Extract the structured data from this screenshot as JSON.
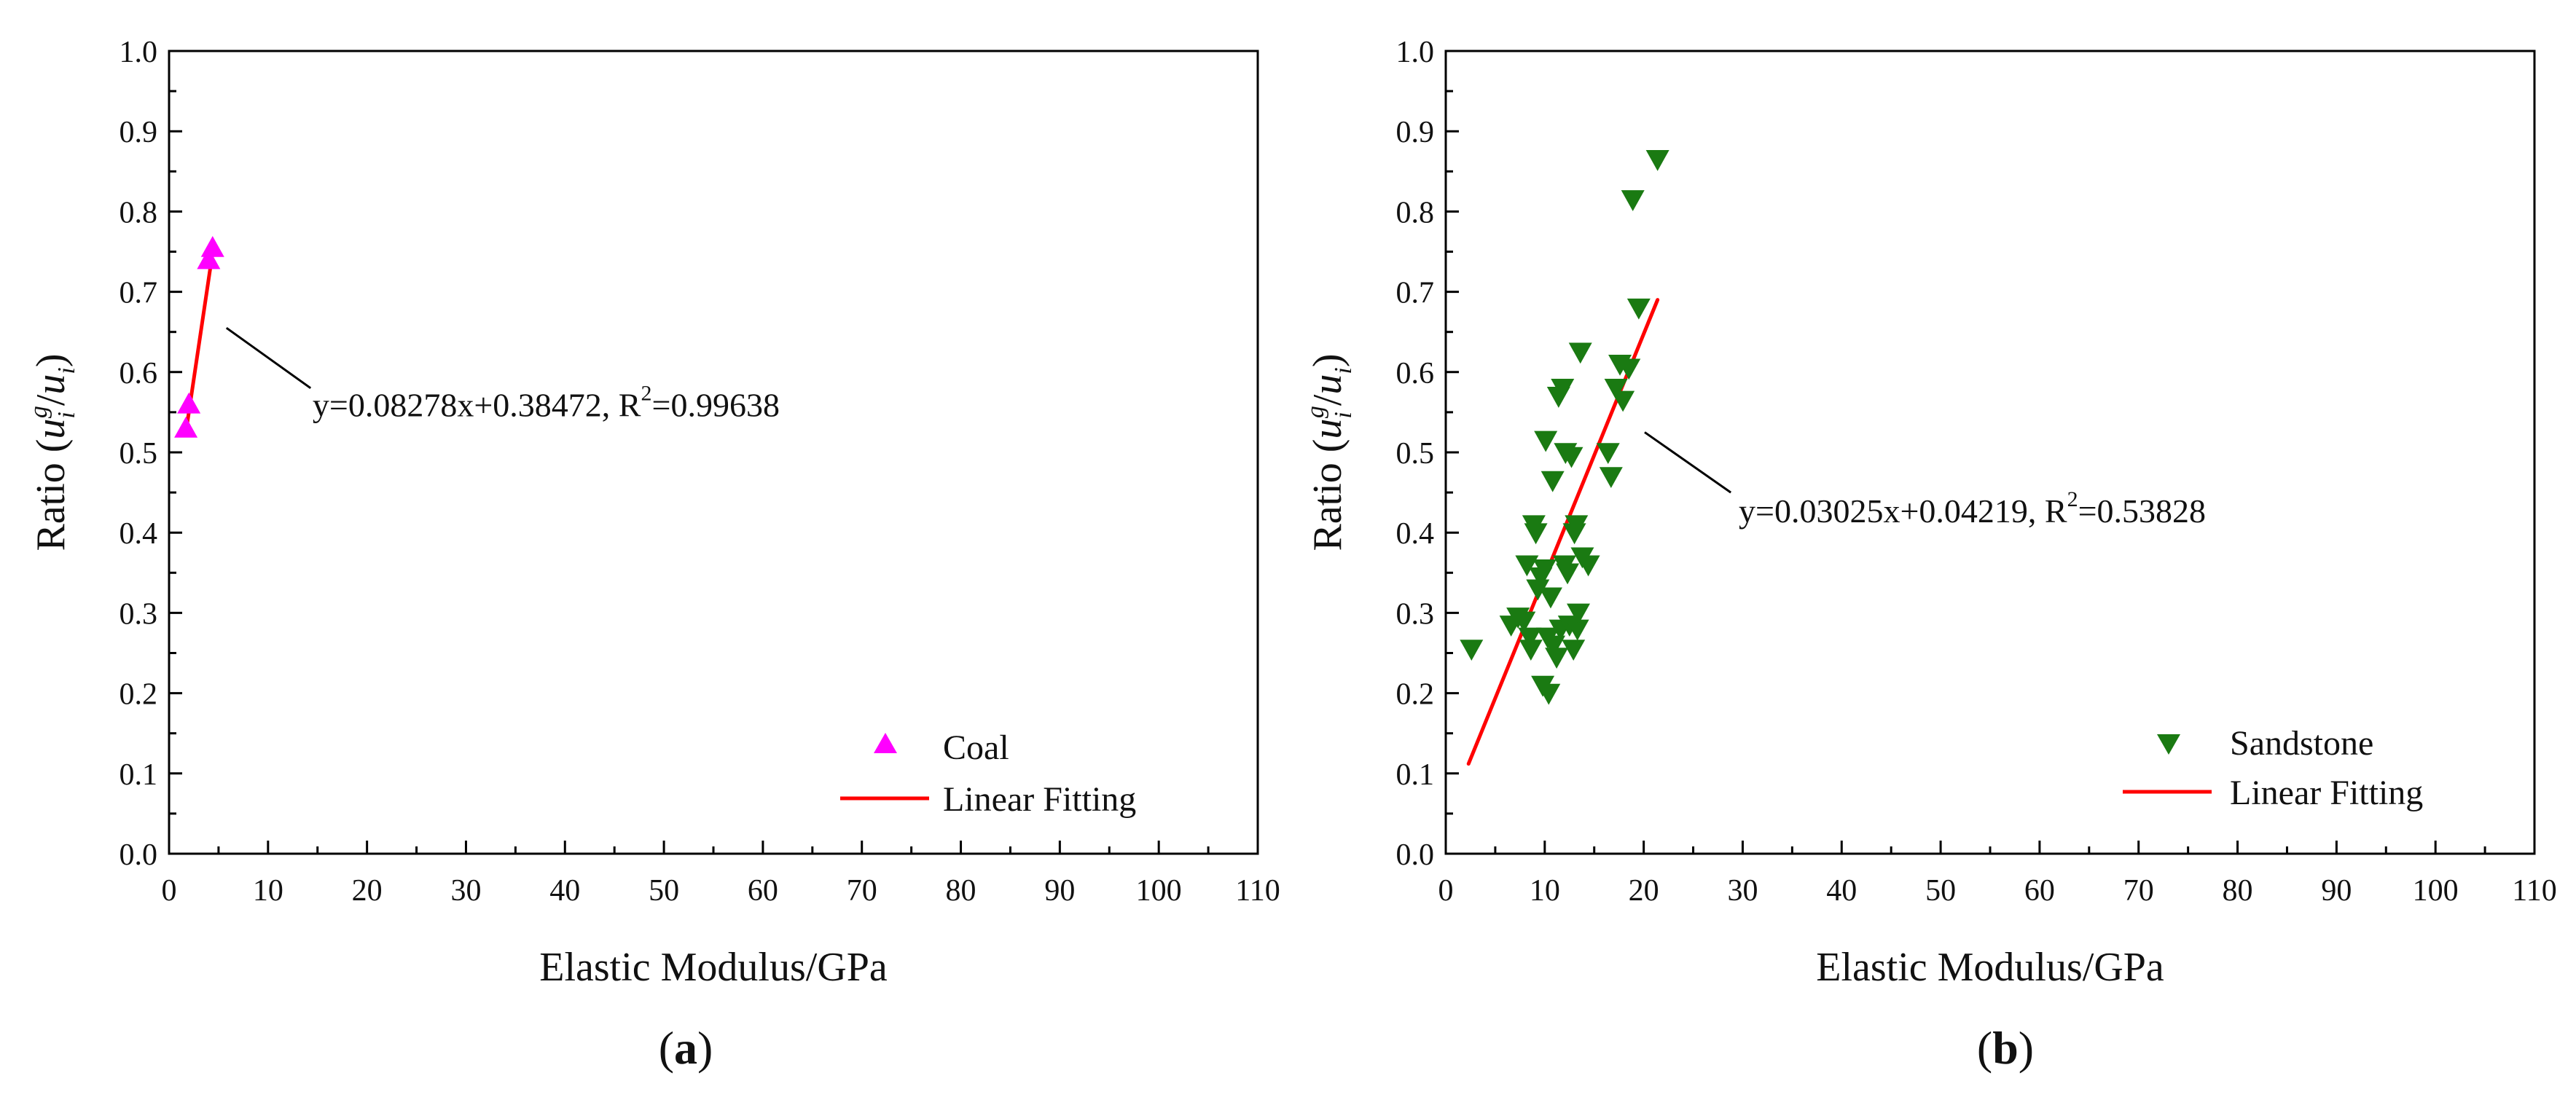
{
  "chart_data": [
    {
      "panel": "a",
      "panel_label_letter": "a",
      "type": "scatter",
      "xlabel": "Elastic Modulus/GPa",
      "ylabel_prefix": "Ratio (",
      "ylabel_u": "u",
      "ylabel_sup": "g",
      "ylabel_sub": "i",
      "ylabel_slash": "/",
      "ylabel_suffix": ")",
      "xlim": [
        0,
        110
      ],
      "ylim": [
        0.0,
        1.0
      ],
      "xticks": [
        "0",
        "10",
        "20",
        "30",
        "40",
        "50",
        "60",
        "70",
        "80",
        "90",
        "100",
        "110"
      ],
      "yticks": [
        "0.0",
        "0.1",
        "0.2",
        "0.3",
        "0.4",
        "0.5",
        "0.6",
        "0.7",
        "0.8",
        "0.9",
        "1.0"
      ],
      "marker": "triangle-up",
      "color": "#ff00ff",
      "series_name": "Coal",
      "fit_name": "Linear Fitting",
      "fit_color": "#ff0000",
      "fit_line": {
        "x0": 1.7,
        "y0": 0.525,
        "x1": 4.4,
        "y1": 0.749
      },
      "points": [
        {
          "x": 1.7,
          "y": 0.53
        },
        {
          "x": 2.0,
          "y": 0.56
        },
        {
          "x": 4.0,
          "y": 0.74
        },
        {
          "x": 4.4,
          "y": 0.755
        }
      ],
      "equation": "y=0.08278x+0.38472, R",
      "equation_sup": "2",
      "equation_tail": "=0.99638",
      "annotation_from": {
        "x": 5.8,
        "y": 0.655
      },
      "annotation_to": {
        "x": 14.3,
        "y": 0.58
      },
      "annotation_text_at": {
        "x": 14.5,
        "y": 0.545
      },
      "legend_position": "bottom-right"
    },
    {
      "panel": "b",
      "panel_label_letter": "b",
      "type": "scatter",
      "xlabel": "Elastic Modulus/GPa",
      "ylabel_prefix": "Ratio (",
      "ylabel_u": "u",
      "ylabel_sup": "g",
      "ylabel_sub": "i",
      "ylabel_slash": "/",
      "ylabel_suffix": ")",
      "xlim": [
        0,
        110
      ],
      "ylim": [
        0.0,
        1.0
      ],
      "xticks": [
        "0",
        "10",
        "20",
        "30",
        "40",
        "50",
        "60",
        "70",
        "80",
        "90",
        "100",
        "110"
      ],
      "yticks": [
        "0.0",
        "0.1",
        "0.2",
        "0.3",
        "0.4",
        "0.5",
        "0.6",
        "0.7",
        "0.8",
        "0.9",
        "1.0"
      ],
      "marker": "triangle-down",
      "color": "#1a7a12",
      "series_name": "Sandstone",
      "fit_name": "Linear Fitting",
      "fit_color": "#ff0000",
      "fit_line": {
        "x0": 2.3,
        "y0": 0.112,
        "x1": 21.4,
        "y1": 0.69
      },
      "points": [
        {
          "x": 2.6,
          "y": 0.255
        },
        {
          "x": 6.6,
          "y": 0.285
        },
        {
          "x": 7.3,
          "y": 0.295
        },
        {
          "x": 7.9,
          "y": 0.29
        },
        {
          "x": 8.2,
          "y": 0.36
        },
        {
          "x": 8.5,
          "y": 0.27
        },
        {
          "x": 8.6,
          "y": 0.255
        },
        {
          "x": 8.9,
          "y": 0.41
        },
        {
          "x": 9.1,
          "y": 0.4
        },
        {
          "x": 9.3,
          "y": 0.33
        },
        {
          "x": 9.6,
          "y": 0.345
        },
        {
          "x": 9.8,
          "y": 0.21
        },
        {
          "x": 10.0,
          "y": 0.355
        },
        {
          "x": 10.1,
          "y": 0.515
        },
        {
          "x": 10.3,
          "y": 0.27
        },
        {
          "x": 10.4,
          "y": 0.2
        },
        {
          "x": 10.6,
          "y": 0.32
        },
        {
          "x": 10.8,
          "y": 0.465
        },
        {
          "x": 10.9,
          "y": 0.26
        },
        {
          "x": 11.2,
          "y": 0.245
        },
        {
          "x": 11.4,
          "y": 0.57
        },
        {
          "x": 11.6,
          "y": 0.28
        },
        {
          "x": 11.8,
          "y": 0.58
        },
        {
          "x": 12.0,
          "y": 0.36
        },
        {
          "x": 12.1,
          "y": 0.5
        },
        {
          "x": 12.3,
          "y": 0.35
        },
        {
          "x": 12.5,
          "y": 0.285
        },
        {
          "x": 12.7,
          "y": 0.495
        },
        {
          "x": 12.9,
          "y": 0.255
        },
        {
          "x": 13.0,
          "y": 0.4
        },
        {
          "x": 13.2,
          "y": 0.41
        },
        {
          "x": 13.3,
          "y": 0.28
        },
        {
          "x": 13.4,
          "y": 0.3
        },
        {
          "x": 13.6,
          "y": 0.625
        },
        {
          "x": 13.8,
          "y": 0.37
        },
        {
          "x": 14.4,
          "y": 0.36
        },
        {
          "x": 16.4,
          "y": 0.5
        },
        {
          "x": 16.7,
          "y": 0.47
        },
        {
          "x": 17.2,
          "y": 0.58
        },
        {
          "x": 17.6,
          "y": 0.61
        },
        {
          "x": 17.9,
          "y": 0.565
        },
        {
          "x": 18.5,
          "y": 0.605
        },
        {
          "x": 18.9,
          "y": 0.815
        },
        {
          "x": 19.5,
          "y": 0.68
        },
        {
          "x": 21.4,
          "y": 0.865
        }
      ],
      "equation": "y=0.03025x+0.04219, R",
      "equation_sup": "2",
      "equation_tail": "=0.53828",
      "annotation_from": {
        "x": 20.1,
        "y": 0.525
      },
      "annotation_to": {
        "x": 28.8,
        "y": 0.45
      },
      "annotation_text_at": {
        "x": 29.6,
        "y": 0.413
      },
      "legend_position": "bottom-right"
    }
  ]
}
